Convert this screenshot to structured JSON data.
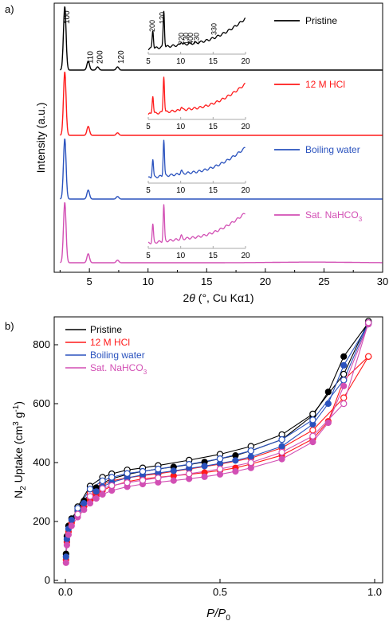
{
  "chart_data": [
    {
      "panel": "a)",
      "type": "line",
      "xlabel_prefix": "2",
      "xlabel_theta": "θ",
      "xlabel_suffix": " (°, Cu Kα1)",
      "ylabel": "Intensity (a.u.)",
      "xlim": [
        2,
        30
      ],
      "xticks": [
        5,
        10,
        15,
        20,
        25,
        30
      ],
      "peak_labels": [
        {
          "text": "100",
          "x": 2.9
        },
        {
          "text": "110",
          "x": 4.9
        },
        {
          "text": "200",
          "x": 5.7
        },
        {
          "text": "120",
          "x": 7.5
        }
      ],
      "inset": {
        "xlim": [
          5,
          20
        ],
        "xticks": [
          5,
          10,
          15,
          20
        ],
        "peak_labels": [
          "200",
          "120",
          "220",
          "130",
          "400",
          "230",
          "330"
        ]
      },
      "series": [
        {
          "name": "Pristine",
          "color": "#000000",
          "peaks": [
            {
              "x": 2.9,
              "height": 1.0
            },
            {
              "x": 4.9,
              "height": 0.14
            },
            {
              "x": 5.7,
              "height": 0.05
            },
            {
              "x": 7.4,
              "height": 0.05
            }
          ]
        },
        {
          "name": "12 M HCl",
          "color": "#ff1a1a",
          "peaks": [
            {
              "x": 2.9,
              "height": 1.0
            },
            {
              "x": 4.9,
              "height": 0.14
            },
            {
              "x": 7.4,
              "height": 0.04
            }
          ]
        },
        {
          "name": "Boiling water",
          "color": "#2a52be",
          "peaks": [
            {
              "x": 2.9,
              "height": 0.95
            },
            {
              "x": 4.9,
              "height": 0.14
            },
            {
              "x": 7.4,
              "height": 0.04
            }
          ]
        },
        {
          "name": "Sat. NaHCO",
          "name_sub": "3",
          "color": "#d24fb4",
          "peaks": [
            {
              "x": 2.9,
              "height": 0.95
            },
            {
              "x": 4.9,
              "height": 0.14
            },
            {
              "x": 7.4,
              "height": 0.04
            }
          ]
        }
      ]
    },
    {
      "panel": "b)",
      "type": "scatter",
      "xlabel": "P/P",
      "xlabel_sub": "0",
      "ylabel_prefix": "N",
      "ylabel_sub": "2",
      "ylabel_mid": " Uptake (cm",
      "ylabel_sup": "3",
      "ylabel_end": " g",
      "ylabel_sup2": "-1",
      "ylabel_close": ")",
      "xlim": [
        0,
        1.0
      ],
      "ylim": [
        0,
        900
      ],
      "xticks": [
        {
          "v": 0.0,
          "label": "0.0"
        },
        {
          "v": 0.5,
          "label": "0.5"
        },
        {
          "v": 1.0,
          "label": "1.0"
        }
      ],
      "yticks": [
        {
          "v": 0,
          "label": "0"
        },
        {
          "v": 200,
          "label": "200"
        },
        {
          "v": 400,
          "label": "400"
        },
        {
          "v": 600,
          "label": "600"
        },
        {
          "v": 800,
          "label": "800"
        }
      ],
      "series": [
        {
          "name": "Pristine",
          "color": "#000000",
          "adsorption": [
            [
              0.002,
              90
            ],
            [
              0.005,
              150
            ],
            [
              0.01,
              185
            ],
            [
              0.02,
              210
            ],
            [
              0.04,
              240
            ],
            [
              0.06,
              270
            ],
            [
              0.08,
              295
            ],
            [
              0.1,
              315
            ],
            [
              0.12,
              330
            ],
            [
              0.15,
              345
            ],
            [
              0.2,
              360
            ],
            [
              0.25,
              370
            ],
            [
              0.3,
              378
            ],
            [
              0.35,
              385
            ],
            [
              0.4,
              393
            ],
            [
              0.45,
              402
            ],
            [
              0.5,
              413
            ],
            [
              0.55,
              424
            ],
            [
              0.6,
              440
            ],
            [
              0.7,
              478
            ],
            [
              0.8,
              560
            ],
            [
              0.85,
              640
            ],
            [
              0.9,
              760
            ],
            [
              0.98,
              875
            ]
          ],
          "desorption": [
            [
              0.98,
              880
            ],
            [
              0.9,
              700
            ],
            [
              0.8,
              565
            ],
            [
              0.7,
              495
            ],
            [
              0.6,
              455
            ],
            [
              0.5,
              428
            ],
            [
              0.4,
              408
            ],
            [
              0.3,
              390
            ],
            [
              0.25,
              382
            ],
            [
              0.2,
              375
            ],
            [
              0.15,
              362
            ],
            [
              0.12,
              350
            ],
            [
              0.08,
              320
            ],
            [
              0.04,
              250
            ]
          ]
        },
        {
          "name": "12 M HCl",
          "color": "#ff1a1a",
          "adsorption": [
            [
              0.002,
              70
            ],
            [
              0.005,
              130
            ],
            [
              0.01,
              165
            ],
            [
              0.02,
              195
            ],
            [
              0.04,
              225
            ],
            [
              0.06,
              250
            ],
            [
              0.08,
              272
            ],
            [
              0.1,
              290
            ],
            [
              0.12,
              305
            ],
            [
              0.15,
              320
            ],
            [
              0.2,
              335
            ],
            [
              0.25,
              345
            ],
            [
              0.3,
              350
            ],
            [
              0.35,
              355
            ],
            [
              0.4,
              360
            ],
            [
              0.45,
              366
            ],
            [
              0.5,
              373
            ],
            [
              0.55,
              382
            ],
            [
              0.6,
              395
            ],
            [
              0.7,
              425
            ],
            [
              0.8,
              480
            ],
            [
              0.85,
              540
            ],
            [
              0.9,
              680
            ],
            [
              0.98,
              760
            ]
          ],
          "desorption": [
            [
              0.98,
              760
            ],
            [
              0.9,
              620
            ],
            [
              0.8,
              510
            ],
            [
              0.7,
              450
            ],
            [
              0.6,
              415
            ],
            [
              0.5,
              395
            ],
            [
              0.4,
              378
            ],
            [
              0.3,
              362
            ],
            [
              0.25,
              356
            ],
            [
              0.2,
              348
            ],
            [
              0.15,
              338
            ],
            [
              0.12,
              325
            ],
            [
              0.08,
              295
            ],
            [
              0.04,
              235
            ]
          ]
        },
        {
          "name": "Boiling water",
          "color": "#2a52be",
          "adsorption": [
            [
              0.002,
              80
            ],
            [
              0.005,
              140
            ],
            [
              0.01,
              175
            ],
            [
              0.02,
              205
            ],
            [
              0.04,
              235
            ],
            [
              0.06,
              262
            ],
            [
              0.08,
              285
            ],
            [
              0.1,
              302
            ],
            [
              0.12,
              318
            ],
            [
              0.15,
              333
            ],
            [
              0.2,
              348
            ],
            [
              0.25,
              358
            ],
            [
              0.3,
              365
            ],
            [
              0.35,
              372
            ],
            [
              0.4,
              380
            ],
            [
              0.45,
              388
            ],
            [
              0.5,
              397
            ],
            [
              0.55,
              407
            ],
            [
              0.6,
              420
            ],
            [
              0.7,
              455
            ],
            [
              0.8,
              530
            ],
            [
              0.85,
              600
            ],
            [
              0.9,
              730
            ],
            [
              0.98,
              870
            ]
          ],
          "desorption": [
            [
              0.98,
              875
            ],
            [
              0.9,
              680
            ],
            [
              0.8,
              545
            ],
            [
              0.7,
              478
            ],
            [
              0.6,
              440
            ],
            [
              0.5,
              413
            ],
            [
              0.4,
              394
            ],
            [
              0.3,
              378
            ],
            [
              0.25,
              370
            ],
            [
              0.2,
              363
            ],
            [
              0.15,
              350
            ],
            [
              0.12,
              338
            ],
            [
              0.08,
              310
            ],
            [
              0.04,
              245
            ]
          ]
        },
        {
          "name": "Sat. NaHCO",
          "name_sub": "3",
          "color": "#d24fb4",
          "adsorption": [
            [
              0.002,
              60
            ],
            [
              0.005,
              120
            ],
            [
              0.01,
              155
            ],
            [
              0.02,
              185
            ],
            [
              0.04,
              215
            ],
            [
              0.06,
              240
            ],
            [
              0.08,
              262
            ],
            [
              0.1,
              278
            ],
            [
              0.12,
              292
            ],
            [
              0.15,
              305
            ],
            [
              0.2,
              318
            ],
            [
              0.25,
              327
            ],
            [
              0.3,
              333
            ],
            [
              0.35,
              339
            ],
            [
              0.4,
              345
            ],
            [
              0.45,
              352
            ],
            [
              0.5,
              360
            ],
            [
              0.55,
              370
            ],
            [
              0.6,
              382
            ],
            [
              0.7,
              412
            ],
            [
              0.8,
              470
            ],
            [
              0.85,
              535
            ],
            [
              0.9,
              660
            ],
            [
              0.98,
              870
            ]
          ],
          "desorption": [
            [
              0.98,
              875
            ],
            [
              0.9,
              600
            ],
            [
              0.8,
              490
            ],
            [
              0.7,
              435
            ],
            [
              0.6,
              400
            ],
            [
              0.5,
              378
            ],
            [
              0.4,
              362
            ],
            [
              0.3,
              348
            ],
            [
              0.25,
              340
            ],
            [
              0.2,
              332
            ],
            [
              0.15,
              322
            ],
            [
              0.12,
              312
            ],
            [
              0.08,
              285
            ],
            [
              0.04,
              225
            ]
          ]
        }
      ]
    }
  ]
}
